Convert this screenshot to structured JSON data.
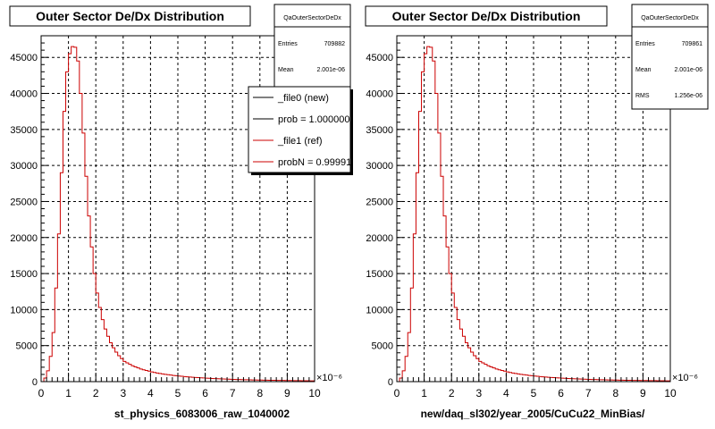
{
  "chart_data": [
    {
      "type": "histogram",
      "title": "Outer Sector De/Dx Distribution",
      "xlabel": "st_physics_6083006_raw_1040002",
      "x_exponent": "×10⁻⁶",
      "xlim": [
        0,
        10
      ],
      "ylim": [
        0,
        48000
      ],
      "yticks": [
        0,
        5000,
        10000,
        15000,
        20000,
        25000,
        30000,
        35000,
        40000,
        45000
      ],
      "ytick_labels": [
        "0",
        "5000",
        "10000",
        "15000",
        "20000",
        "25000",
        "30000",
        "35000",
        "40000",
        "45000"
      ],
      "xticks": [
        0,
        1,
        2,
        3,
        4,
        5,
        6,
        7,
        8,
        9,
        10
      ],
      "xtick_labels": [
        "0",
        "1",
        "2",
        "3",
        "4",
        "5",
        "6",
        "7",
        "8",
        "9",
        "10"
      ],
      "grid": true,
      "stats": {
        "name": "QaOuterSectorDeDx",
        "rows": [
          {
            "label": "Entries",
            "value": "709882"
          },
          {
            "label": "Mean",
            "value": "2.001e-06"
          }
        ]
      },
      "legend": {
        "placement": "top-right",
        "entries": [
          {
            "label": "_file0 (new)",
            "color": "#000000"
          },
          {
            "label": "prob = 1.000000",
            "color": "#000000"
          },
          {
            "label": "_file1 (ref)",
            "color": "#cc0000"
          },
          {
            "label": "probN = 0.999910",
            "color": "#cc0000"
          }
        ]
      },
      "series": [
        {
          "color": "#cc0000",
          "bin_width": 0.1,
          "values": [
            0,
            500,
            1500,
            3500,
            6800,
            13000,
            20500,
            29000,
            37500,
            43000,
            45500,
            46500,
            46400,
            44500,
            40000,
            34500,
            28500,
            23000,
            18700,
            15000,
            12300,
            10300,
            8600,
            7300,
            6300,
            5400,
            4700,
            4100,
            3600,
            3200,
            2800,
            2600,
            2400,
            2200,
            2050,
            1900,
            1750,
            1650,
            1550,
            1450,
            1350,
            1270,
            1200,
            1130,
            1070,
            1010,
            960,
            910,
            860,
            820,
            780,
            740,
            700,
            670,
            640,
            610,
            580,
            555,
            530,
            505,
            480,
            460,
            440,
            420,
            400,
            385,
            370,
            355,
            340,
            325,
            310,
            300,
            290,
            280,
            270,
            260,
            250,
            240,
            230,
            220,
            210,
            200,
            195,
            190,
            185,
            180,
            175,
            170,
            165,
            160,
            155,
            150,
            145,
            140,
            135,
            130,
            125,
            120,
            115,
            110
          ]
        }
      ]
    },
    {
      "type": "histogram",
      "title": "Outer Sector De/Dx Distribution",
      "xlabel": "new/daq_sl302/year_2005/CuCu22_MinBias/",
      "x_exponent": "×10⁻⁶",
      "xlim": [
        0,
        10
      ],
      "ylim": [
        0,
        48000
      ],
      "yticks": [
        0,
        5000,
        10000,
        15000,
        20000,
        25000,
        30000,
        35000,
        40000,
        45000
      ],
      "ytick_labels": [
        "0",
        "5000",
        "10000",
        "15000",
        "20000",
        "25000",
        "30000",
        "35000",
        "40000",
        "45000"
      ],
      "xticks": [
        0,
        1,
        2,
        3,
        4,
        5,
        6,
        7,
        8,
        9,
        10
      ],
      "xtick_labels": [
        "0",
        "1",
        "2",
        "3",
        "4",
        "5",
        "6",
        "7",
        "8",
        "9",
        "10"
      ],
      "grid": true,
      "stats": {
        "name": "QaOuterSectorDeDx",
        "rows": [
          {
            "label": "Entries",
            "value": "709861"
          },
          {
            "label": "Mean",
            "value": "2.001e-06"
          },
          {
            "label": "RMS",
            "value": "1.256e-06"
          }
        ]
      },
      "legend": null,
      "series": [
        {
          "color": "#cc0000",
          "bin_width": 0.1,
          "values": [
            0,
            500,
            1500,
            3500,
            6800,
            13000,
            20500,
            29000,
            37500,
            43000,
            45500,
            46500,
            46400,
            44500,
            40000,
            34500,
            28500,
            23000,
            18700,
            15000,
            12300,
            10300,
            8600,
            7300,
            6300,
            5400,
            4700,
            4100,
            3600,
            3200,
            2800,
            2600,
            2400,
            2200,
            2050,
            1900,
            1750,
            1650,
            1550,
            1450,
            1350,
            1270,
            1200,
            1130,
            1070,
            1010,
            960,
            910,
            860,
            820,
            780,
            740,
            700,
            670,
            640,
            610,
            580,
            555,
            530,
            505,
            480,
            460,
            440,
            420,
            400,
            385,
            370,
            355,
            340,
            325,
            310,
            300,
            290,
            280,
            270,
            260,
            250,
            240,
            230,
            220,
            210,
            200,
            195,
            190,
            185,
            180,
            175,
            170,
            165,
            160,
            155,
            150,
            145,
            140,
            135,
            130,
            125,
            120,
            115,
            110
          ]
        }
      ]
    }
  ]
}
